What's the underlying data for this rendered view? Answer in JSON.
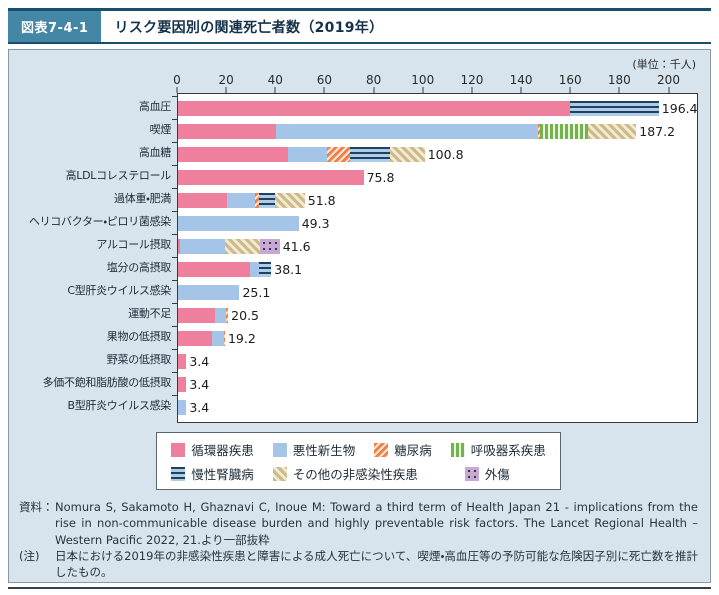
{
  "header": {
    "badge": "図表7-4-1",
    "title": "リスク要因別の関連死亡者数（2019年）"
  },
  "chart_data": {
    "type": "bar",
    "orientation": "horizontal",
    "unit_label": "(単位：千人)",
    "xlim": [
      0,
      200
    ],
    "ticks": [
      0,
      20,
      40,
      60,
      80,
      100,
      120,
      140,
      160,
      180,
      200
    ],
    "legend_position": "bottom",
    "legend": [
      {
        "key": "cvd",
        "label": "循環器疾患"
      },
      {
        "key": "cancer",
        "label": "悪性新生物"
      },
      {
        "key": "diabetes",
        "label": "糖尿病"
      },
      {
        "key": "resp",
        "label": "呼吸器系疾患"
      },
      {
        "key": "ckd",
        "label": "慢性腎臓病"
      },
      {
        "key": "other",
        "label": "その他の非感染性疾患"
      },
      {
        "key": "injury",
        "label": "外傷"
      }
    ],
    "legend_row_break": 4,
    "rows": [
      {
        "label": "高血圧",
        "total": 196.4,
        "segments": [
          {
            "k": "cvd",
            "v": 160.0
          },
          {
            "k": "ckd",
            "v": 36.4
          }
        ]
      },
      {
        "label": "喫煙",
        "total": 187.2,
        "segments": [
          {
            "k": "cvd",
            "v": 40.0
          },
          {
            "k": "cancer",
            "v": 107.0
          },
          {
            "k": "diabetes",
            "v": 1.0
          },
          {
            "k": "resp",
            "v": 19.5
          },
          {
            "k": "other",
            "v": 19.7
          }
        ]
      },
      {
        "label": "高血糖",
        "total": 100.8,
        "segments": [
          {
            "k": "cvd",
            "v": 45.0
          },
          {
            "k": "cancer",
            "v": 16.0
          },
          {
            "k": "diabetes",
            "v": 9.3
          },
          {
            "k": "ckd",
            "v": 16.5
          },
          {
            "k": "other",
            "v": 14.0
          }
        ]
      },
      {
        "label": "高LDLコレステロール",
        "total": 75.8,
        "segments": [
          {
            "k": "cvd",
            "v": 75.8
          }
        ]
      },
      {
        "label": "過体重・肥満",
        "total": 51.8,
        "segments": [
          {
            "k": "cvd",
            "v": 20.0
          },
          {
            "k": "cancer",
            "v": 11.3
          },
          {
            "k": "diabetes",
            "v": 1.7
          },
          {
            "k": "ckd",
            "v": 6.8
          },
          {
            "k": "other",
            "v": 12.0
          }
        ]
      },
      {
        "label": "ヘリコバクター・ピロリ菌感染",
        "total": 49.3,
        "segments": [
          {
            "k": "cancer",
            "v": 49.3
          }
        ]
      },
      {
        "label": "アルコール摂取",
        "total": 41.6,
        "segments": [
          {
            "k": "cvd",
            "v": 0.8
          },
          {
            "k": "cancer",
            "v": 18.4
          },
          {
            "k": "other",
            "v": 14.5
          },
          {
            "k": "injury",
            "v": 7.9
          }
        ]
      },
      {
        "label": "塩分の高摂取",
        "total": 38.1,
        "segments": [
          {
            "k": "cvd",
            "v": 29.3
          },
          {
            "k": "cancer",
            "v": 3.8
          },
          {
            "k": "ckd",
            "v": 5.0
          }
        ]
      },
      {
        "label": "C型肝炎ウイルス感染",
        "total": 25.1,
        "segments": [
          {
            "k": "cancer",
            "v": 25.1
          }
        ]
      },
      {
        "label": "運動不足",
        "total": 20.5,
        "segments": [
          {
            "k": "cvd",
            "v": 15.0
          },
          {
            "k": "cancer",
            "v": 4.5
          },
          {
            "k": "diabetes",
            "v": 1.0
          }
        ]
      },
      {
        "label": "果物の低摂取",
        "total": 19.2,
        "segments": [
          {
            "k": "cvd",
            "v": 13.8
          },
          {
            "k": "cancer",
            "v": 4.9
          },
          {
            "k": "diabetes",
            "v": 0.5
          }
        ]
      },
      {
        "label": "野菜の低摂取",
        "total": 3.4,
        "segments": [
          {
            "k": "cvd",
            "v": 3.4
          }
        ]
      },
      {
        "label": "多価不飽和脂肪酸の低摂取",
        "total": 3.4,
        "segments": [
          {
            "k": "cvd",
            "v": 3.4
          }
        ]
      },
      {
        "label": "B型肝炎ウイルス感染",
        "total": 3.4,
        "segments": [
          {
            "k": "cancer",
            "v": 3.4
          }
        ]
      }
    ]
  },
  "footer": {
    "source_label": "資料：",
    "source_text": "Nomura S, Sakamoto H, Ghaznavi C, Inoue M: Toward a third term of Health Japan 21 - implications from the rise in non-communicable disease burden and highly preventable risk factors. The Lancet Regional Health – Western Pacific 2022, 21.より一部抜粋",
    "note_label": "(注)",
    "note_text": "日本における2019年の非感染性疾患と障害による成人死亡について、喫煙・高血圧等の予防可能な危険因子別に死亡数を推計したもの。"
  },
  "colors": {
    "pink": "#ee7f9d",
    "blue": "#a5c5e8",
    "orange": "#ed8147",
    "green": "#72b34c",
    "navy": "#20405e",
    "ckdBg": "#aecde9",
    "tan": "#cdba84",
    "tanBg": "#f0ead8",
    "purple": "#c6aad4",
    "dot": "#3f3044",
    "rule": "#17506f",
    "badge": "#4386a6",
    "panelBg": "#d7e4ee"
  }
}
